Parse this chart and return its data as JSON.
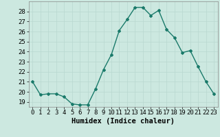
{
  "x": [
    0,
    1,
    2,
    3,
    4,
    5,
    6,
    7,
    8,
    9,
    10,
    11,
    12,
    13,
    14,
    15,
    16,
    17,
    18,
    19,
    20,
    21,
    22,
    23
  ],
  "y": [
    21,
    19.7,
    19.8,
    19.8,
    19.5,
    18.8,
    18.7,
    18.7,
    20.3,
    22.2,
    23.7,
    26.1,
    27.2,
    28.4,
    28.4,
    27.6,
    28.1,
    26.2,
    25.4,
    23.9,
    24.1,
    22.5,
    21.0,
    19.8
  ],
  "line_color": "#1a7a6a",
  "marker": "D",
  "marker_size": 2.0,
  "bg_color": "#cce8e0",
  "grid_color": "#b8d8d0",
  "xlabel": "Humidex (Indice chaleur)",
  "ylim": [
    18.5,
    29.0
  ],
  "xlim": [
    -0.5,
    23.5
  ],
  "yticks": [
    19,
    20,
    21,
    22,
    23,
    24,
    25,
    26,
    27,
    28
  ],
  "xtick_labels": [
    "0",
    "1",
    "2",
    "3",
    "4",
    "5",
    "6",
    "7",
    "8",
    "9",
    "10",
    "11",
    "12",
    "13",
    "14",
    "15",
    "16",
    "17",
    "18",
    "19",
    "20",
    "21",
    "22",
    "23"
  ],
  "tick_fontsize": 6.5,
  "xlabel_fontsize": 7.5,
  "line_width": 1.0
}
